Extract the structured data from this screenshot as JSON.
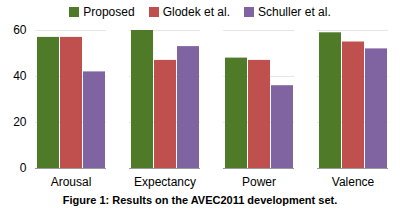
{
  "chart_data": {
    "type": "bar",
    "caption": "Figure 1: Results on the AVEC2011 development set.",
    "categories": [
      "Arousal",
      "Expectancy",
      "Power",
      "Valence"
    ],
    "series": [
      {
        "name": "Proposed",
        "color": "#4f7a28",
        "values": [
          57,
          60,
          48,
          59
        ]
      },
      {
        "name": "Glodek et al.",
        "color": "#c0504d",
        "values": [
          57,
          47,
          47,
          55
        ]
      },
      {
        "name": "Schuller et al.",
        "color": "#8064a2",
        "values": [
          42,
          53,
          36,
          52
        ]
      }
    ],
    "ylim": [
      0,
      60
    ],
    "yticks": [
      0,
      20,
      40,
      60
    ],
    "grid": true,
    "legend": "top"
  }
}
